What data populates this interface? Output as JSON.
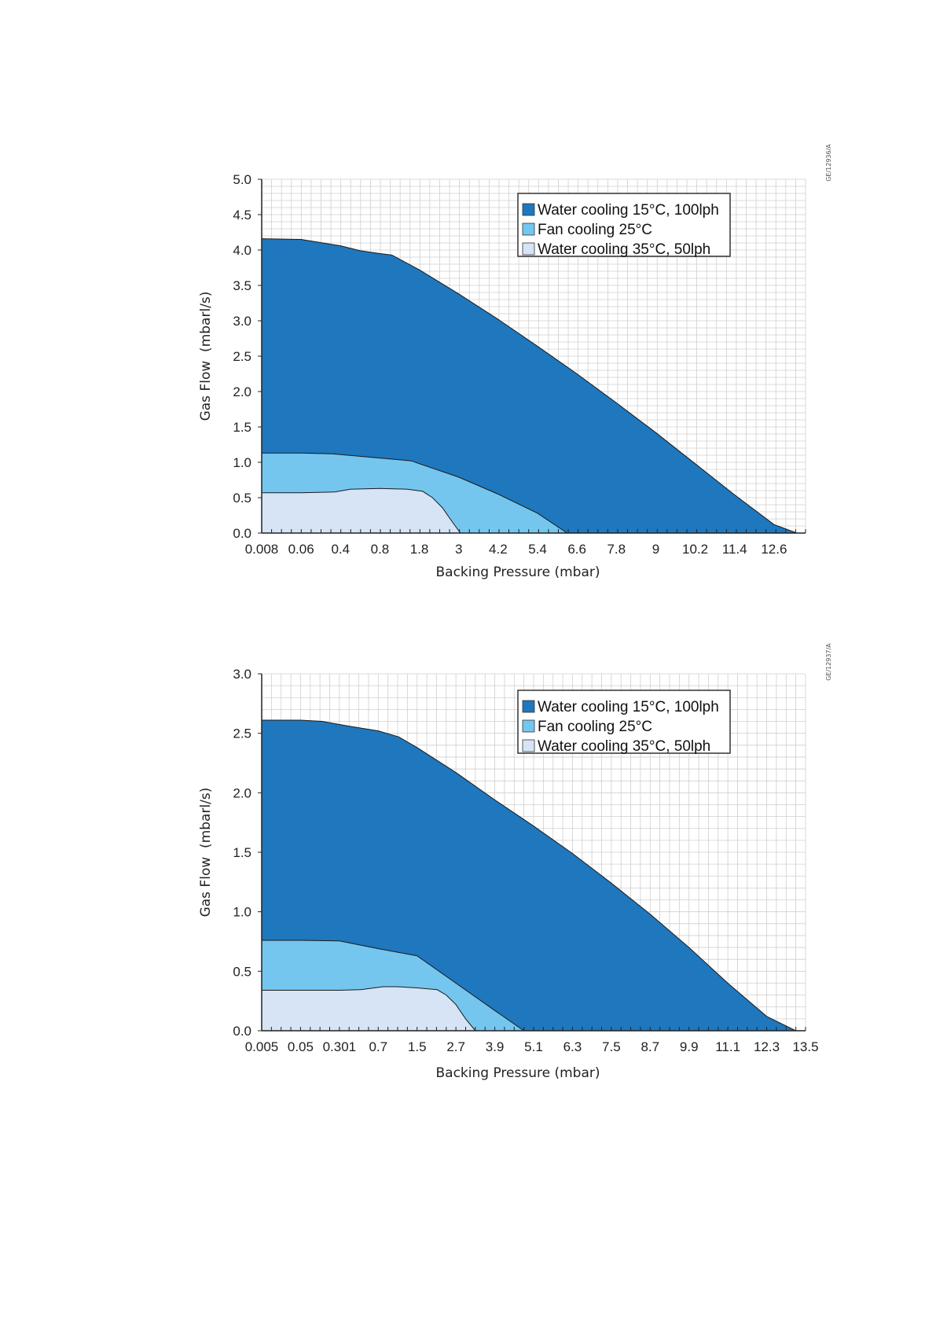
{
  "colors": {
    "water15": "#1f77bd",
    "fan25": "#74c6ef",
    "water35": "#d6e4f5",
    "outline": "#1a1a1a",
    "grid": "#cfcfcf"
  },
  "chart_data": [
    {
      "type": "area",
      "code": "GE/12936/A",
      "xlabel": "Backing Pressure (mbar)",
      "ylabel": "Gas Flow  (mbarl/s)",
      "ylim": [
        0,
        5
      ],
      "yticks": [
        "0.0",
        "0.5",
        "1.0",
        "1.5",
        "2.0",
        "2.5",
        "3.0",
        "3.5",
        "4.0",
        "4.5",
        "5.0"
      ],
      "xtick_labels": [
        "0.008",
        "0.06",
        "0.4",
        "0.8",
        "1.8",
        "3",
        "4.2",
        "5.4",
        "6.6",
        "7.8",
        "9",
        "10.2",
        "11.4",
        "12.6"
      ],
      "x_axis_end_tick_units": 13.8,
      "grid": true,
      "legend_position": "top-right",
      "series": [
        {
          "name": "Water cooling 15°C, 100lph",
          "color_key": "water15",
          "points": [
            [
              0.008,
              4.16
            ],
            [
              0.06,
              4.15
            ],
            [
              0.4,
              4.06
            ],
            [
              0.6,
              3.99
            ],
            [
              0.8,
              3.95
            ],
            [
              1.1,
              3.93
            ],
            [
              1.8,
              3.72
            ],
            [
              3,
              3.38
            ],
            [
              4.2,
              3.02
            ],
            [
              5.4,
              2.64
            ],
            [
              6.6,
              2.25
            ],
            [
              7.8,
              1.84
            ],
            [
              9,
              1.42
            ],
            [
              10.2,
              0.98
            ],
            [
              11.4,
              0.54
            ],
            [
              12.6,
              0.12
            ],
            [
              13.3,
              0
            ]
          ]
        },
        {
          "name": "Fan cooling 25°C",
          "color_key": "fan25",
          "points": [
            [
              0.008,
              1.13
            ],
            [
              0.06,
              1.13
            ],
            [
              0.33,
              1.12
            ],
            [
              0.8,
              1.06
            ],
            [
              1.6,
              1.02
            ],
            [
              1.8,
              0.98
            ],
            [
              3,
              0.79
            ],
            [
              4.2,
              0.55
            ],
            [
              5.4,
              0.28
            ],
            [
              6.3,
              0
            ]
          ]
        },
        {
          "name": "Water cooling 35°C, 50lph",
          "color_key": "water35",
          "points": [
            [
              0.008,
              0.57
            ],
            [
              0.06,
              0.57
            ],
            [
              0.35,
              0.58
            ],
            [
              0.5,
              0.62
            ],
            [
              0.8,
              0.63
            ],
            [
              1.5,
              0.62
            ],
            [
              1.9,
              0.59
            ],
            [
              2.2,
              0.5
            ],
            [
              2.5,
              0.36
            ],
            [
              2.8,
              0.16
            ],
            [
              3.05,
              0
            ]
          ]
        }
      ]
    },
    {
      "type": "area",
      "code": "GE/12937/A",
      "xlabel": "Backing Pressure (mbar)",
      "ylabel": "Gas Flow  (mbarl/s)",
      "ylim": [
        0,
        3
      ],
      "yticks": [
        "0.0",
        "0.5",
        "1.0",
        "1.5",
        "2.0",
        "2.5",
        "3.0"
      ],
      "xtick_labels": [
        "0.005",
        "0.05",
        "0.301",
        "0.7",
        "1.5",
        "2.7",
        "3.9",
        "5.1",
        "6.3",
        "7.5",
        "8.7",
        "9.9",
        "11.1",
        "12.3",
        "13.5"
      ],
      "x_axis_end_tick_units": 14,
      "grid": true,
      "legend_position": "top-right",
      "series": [
        {
          "name": "Water cooling 15°C, 100lph",
          "color_key": "water15",
          "points": [
            [
              0.005,
              2.61
            ],
            [
              0.05,
              2.61
            ],
            [
              0.19,
              2.6
            ],
            [
              0.4,
              2.56
            ],
            [
              0.7,
              2.52
            ],
            [
              1.12,
              2.47
            ],
            [
              1.5,
              2.38
            ],
            [
              2.7,
              2.17
            ],
            [
              3.9,
              1.94
            ],
            [
              5.1,
              1.72
            ],
            [
              6.3,
              1.49
            ],
            [
              7.5,
              1.24
            ],
            [
              8.7,
              0.98
            ],
            [
              9.9,
              0.7
            ],
            [
              11.1,
              0.4
            ],
            [
              12.3,
              0.12
            ],
            [
              13.2,
              0
            ]
          ]
        },
        {
          "name": "Fan cooling 25°C",
          "color_key": "fan25",
          "points": [
            [
              0.005,
              0.76
            ],
            [
              0.05,
              0.76
            ],
            [
              0.301,
              0.755
            ],
            [
              0.7,
              0.69
            ],
            [
              1.5,
              0.63
            ],
            [
              2.7,
              0.4
            ],
            [
              3.9,
              0.17
            ],
            [
              4.8,
              0
            ]
          ]
        },
        {
          "name": "Water cooling 35°C, 50lph",
          "color_key": "water35",
          "points": [
            [
              0.005,
              0.34
            ],
            [
              0.05,
              0.34
            ],
            [
              0.301,
              0.34
            ],
            [
              0.52,
              0.345
            ],
            [
              0.8,
              0.37
            ],
            [
              1.08,
              0.37
            ],
            [
              1.5,
              0.36
            ],
            [
              2.12,
              0.345
            ],
            [
              2.4,
              0.3
            ],
            [
              2.7,
              0.22
            ],
            [
              3.0,
              0.1
            ],
            [
              3.3,
              0
            ]
          ]
        }
      ]
    }
  ]
}
